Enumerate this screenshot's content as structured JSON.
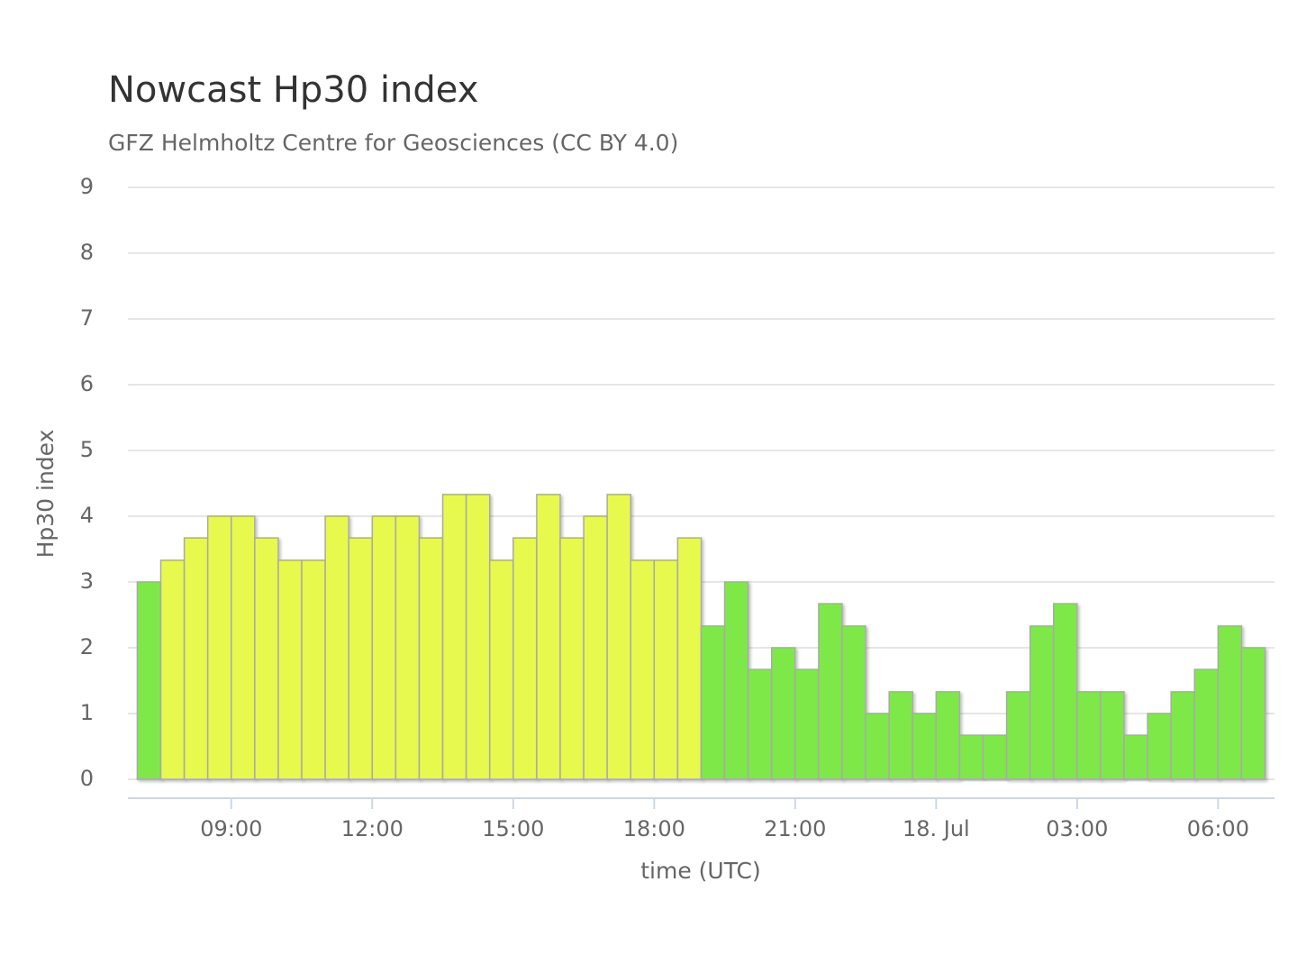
{
  "chart_data": {
    "type": "bar",
    "title": "Nowcast Hp30 index",
    "subtitle": "GFZ Helmholtz Centre for Geosciences (CC BY 4.0)",
    "x_label": "time (UTC)",
    "y_label": "Hp30 index",
    "x": [
      7.25,
      7.75,
      8.25,
      8.75,
      9.25,
      9.75,
      10.25,
      10.75,
      11.25,
      11.75,
      12.25,
      12.75,
      13.25,
      13.75,
      14.25,
      14.75,
      15.25,
      15.75,
      16.25,
      16.75,
      17.25,
      17.75,
      18.25,
      18.75,
      19.25,
      19.75,
      20.25,
      20.75,
      21.25,
      21.75,
      22.25,
      22.75,
      23.25,
      23.75,
      24.25,
      24.75,
      25.25,
      25.75,
      26.25,
      26.75,
      27.25,
      27.75,
      28.25,
      28.75,
      29.25,
      29.75,
      30.25,
      30.75
    ],
    "values": [
      3,
      3.33,
      3.67,
      4,
      4,
      3.67,
      3.33,
      3.33,
      4,
      3.67,
      4,
      4,
      3.67,
      4.33,
      4.33,
      3.33,
      3.67,
      4.33,
      3.67,
      4,
      4.33,
      3.33,
      3.33,
      3.67,
      2.33,
      3,
      1.67,
      2,
      1.67,
      2.67,
      2.33,
      1,
      1.33,
      1,
      1.33,
      0.67,
      0.67,
      1.33,
      2.33,
      2.67,
      1.33,
      1.33,
      0.67,
      1,
      1.33,
      1.67,
      2.33,
      2
    ],
    "colors": [
      "#7ee84a",
      "#e8f94d",
      "#e8f94d",
      "#e8f94d",
      "#e8f94d",
      "#e8f94d",
      "#e8f94d",
      "#e8f94d",
      "#e8f94d",
      "#e8f94d",
      "#e8f94d",
      "#e8f94d",
      "#e8f94d",
      "#e8f94d",
      "#e8f94d",
      "#e8f94d",
      "#e8f94d",
      "#e8f94d",
      "#e8f94d",
      "#e8f94d",
      "#e8f94d",
      "#e8f94d",
      "#e8f94d",
      "#e8f94d",
      "#7ee84a",
      "#7ee84a",
      "#7ee84a",
      "#7ee84a",
      "#7ee84a",
      "#7ee84a",
      "#7ee84a",
      "#7ee84a",
      "#7ee84a",
      "#7ee84a",
      "#7ee84a",
      "#7ee84a",
      "#7ee84a",
      "#7ee84a",
      "#7ee84a",
      "#7ee84a",
      "#7ee84a",
      "#7ee84a",
      "#7ee84a",
      "#7ee84a",
      "#7ee84a",
      "#7ee84a",
      "#7ee84a",
      "#7ee84a"
    ],
    "bar_width": 0.5,
    "xlim": [
      6.8,
      31.2
    ],
    "xticks": [
      {
        "value": 9,
        "label": "09:00"
      },
      {
        "value": 12,
        "label": "12:00"
      },
      {
        "value": 15,
        "label": "15:00"
      },
      {
        "value": 18,
        "label": "18:00"
      },
      {
        "value": 21,
        "label": "21:00"
      },
      {
        "value": 24,
        "label": "18. Jul"
      },
      {
        "value": 27,
        "label": "03:00"
      },
      {
        "value": 30,
        "label": "06:00"
      }
    ],
    "ylim": [
      0,
      9
    ],
    "yticks": [
      0,
      1,
      2,
      3,
      4,
      5,
      6,
      7,
      8,
      9
    ],
    "grid": true
  }
}
